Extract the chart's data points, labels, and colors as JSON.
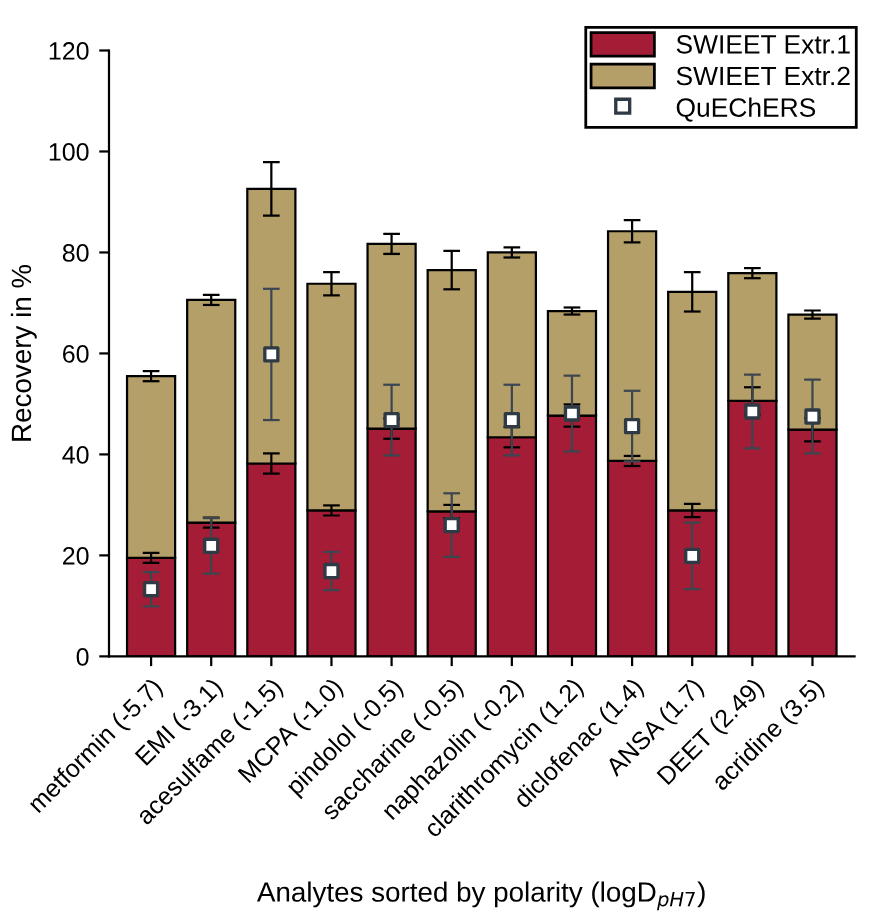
{
  "chart_data": {
    "type": "bar",
    "stacked": true,
    "ylabel": "Recovery in %",
    "xlabel": "Analytes sorted by polarity (logD$_{pH7}$)",
    "categories": [
      "metformin (-5.7)",
      "EMI (-3.1)",
      "acesulfame (-1.5)",
      "MCPA (-1.0)",
      "pindolol (-0.5)",
      "saccharine (-0.5)",
      "naphazolin (-0.2)",
      "clarithromycin (1.2)",
      "diclofenac (1.4)",
      "ANSA (1.7)",
      "DEET (2.49)",
      "acridine (3.5)"
    ],
    "series": [
      {
        "name": "SWIEET Extr.1",
        "color": "#a51c36",
        "values": [
          19.5,
          26.5,
          38.2,
          28.9,
          45.1,
          28.7,
          43.4,
          47.7,
          38.7,
          28.9,
          50.6,
          44.9
        ],
        "errors": [
          1,
          1,
          2,
          1,
          2,
          1.3,
          2,
          2.2,
          1,
          1.3,
          2.7,
          2.3
        ]
      },
      {
        "name": "SWIEET Extr.2",
        "color": "#b59f68",
        "values": [
          36,
          44.1,
          54.4,
          44.9,
          36.6,
          47.8,
          36.6,
          20.7,
          45.5,
          43.3,
          25.3,
          22.8
        ],
        "errors": [
          1,
          1,
          5.3,
          2.3,
          2,
          3.8,
          1,
          0.7,
          2.2,
          3.9,
          1,
          0.8
        ]
      },
      {
        "name": "QuEChERS",
        "type": "scatter",
        "color": "#ffffff",
        "marker": "square",
        "values": [
          13.3,
          21.9,
          59.8,
          16.9,
          46.8,
          26,
          46.8,
          48.1,
          45.6,
          19.9,
          48.5,
          47.5
        ],
        "errors": [
          3.4,
          5.5,
          13,
          3.8,
          7,
          6.3,
          7,
          7.5,
          7,
          6.6,
          7.3,
          7.3
        ]
      }
    ],
    "ylim": [
      0,
      120
    ],
    "yticks": [
      0,
      20,
      40,
      60,
      80,
      100,
      120
    ],
    "grid": false,
    "legend": "top right"
  }
}
